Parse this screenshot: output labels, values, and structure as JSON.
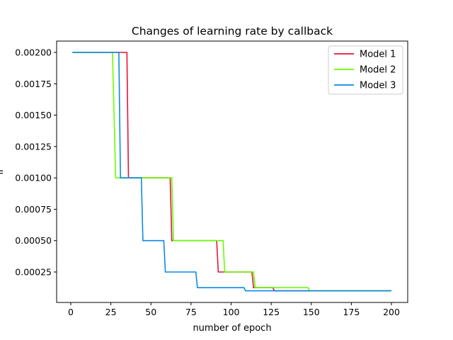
{
  "chart_data": {
    "type": "line",
    "title": "Changes of learning rate by callback",
    "xlabel": "number of epoch",
    "ylabel": "lr",
    "xlim": [
      -9,
      210
    ],
    "ylim": [
      0.0,
      0.0021
    ],
    "xticks": [
      0,
      25,
      50,
      75,
      100,
      125,
      150,
      175,
      200
    ],
    "xtick_labels": [
      "0",
      "25",
      "50",
      "75",
      "100",
      "125",
      "150",
      "175",
      "200"
    ],
    "yticks": [
      0.00025,
      0.0005,
      0.00075,
      0.001,
      0.00125,
      0.0015,
      0.00175,
      0.002
    ],
    "ytick_labels": [
      "0.00025",
      "0.00050",
      "0.00075",
      "0.00100",
      "0.00125",
      "0.00150",
      "0.00175",
      "0.00200"
    ],
    "grid": false,
    "legend_position": "top-right",
    "series": [
      {
        "name": "Model 1",
        "color": "#e6143c",
        "step_points": [
          [
            1,
            0.002
          ],
          [
            35,
            0.002
          ],
          [
            36,
            0.001
          ],
          [
            62,
            0.001
          ],
          [
            63,
            0.0005
          ],
          [
            91,
            0.0005
          ],
          [
            92,
            0.00025
          ],
          [
            113,
            0.00025
          ],
          [
            114,
            0.000125
          ],
          [
            126,
            0.000125
          ],
          [
            127,
            0.0001
          ],
          [
            200,
            0.0001
          ]
        ]
      },
      {
        "name": "Model 2",
        "color": "#66ff00",
        "step_points": [
          [
            1,
            0.002
          ],
          [
            26,
            0.002
          ],
          [
            28,
            0.001
          ],
          [
            63,
            0.001
          ],
          [
            64,
            0.0005
          ],
          [
            95,
            0.0005
          ],
          [
            96,
            0.00025
          ],
          [
            114,
            0.00025
          ],
          [
            115,
            0.000125
          ],
          [
            148,
            0.000125
          ],
          [
            149,
            0.0001
          ],
          [
            200,
            0.0001
          ]
        ]
      },
      {
        "name": "Model 3",
        "color": "#0a8ae6",
        "step_points": [
          [
            1,
            0.002
          ],
          [
            30,
            0.002
          ],
          [
            31,
            0.001
          ],
          [
            44,
            0.001
          ],
          [
            45,
            0.0005
          ],
          [
            58,
            0.0005
          ],
          [
            59,
            0.00025
          ],
          [
            78,
            0.00025
          ],
          [
            79,
            0.000125
          ],
          [
            108,
            0.000125
          ],
          [
            109,
            0.0001
          ],
          [
            200,
            0.0001
          ]
        ]
      }
    ]
  }
}
